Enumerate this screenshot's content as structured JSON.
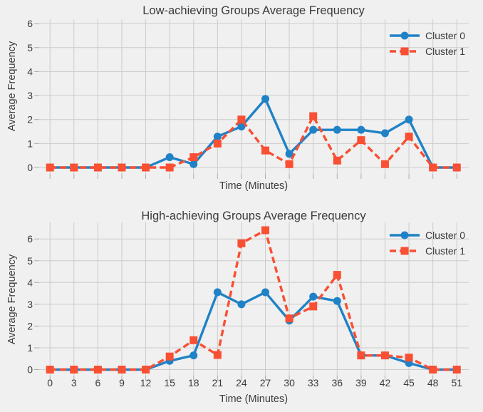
{
  "colors": {
    "figure_background": "#f0f0f0",
    "grid": "#cbcbcb",
    "text": "#3b3b3b",
    "cluster0_blue": "#1f82c6",
    "cluster1_red": "#f94f33"
  },
  "chart_data": [
    {
      "type": "line",
      "title": "Low-achieving Groups Average Frequency",
      "xlabel": "Time (Minutes)",
      "ylabel": "Average Frequency",
      "legend_position": "upper right",
      "grid": true,
      "show_x_tick_labels": false,
      "x": [
        0,
        3,
        6,
        9,
        12,
        15,
        18,
        21,
        24,
        27,
        30,
        33,
        36,
        39,
        42,
        45,
        48,
        51
      ],
      "x_tick_labels": [
        "0",
        "3",
        "6",
        "9",
        "12",
        "15",
        "18",
        "21",
        "24",
        "27",
        "30",
        "33",
        "36",
        "39",
        "42",
        "45",
        "48",
        "51"
      ],
      "y_ticks": [
        0,
        1,
        2,
        3,
        4,
        5,
        6
      ],
      "ylim": [
        0,
        6
      ],
      "series": [
        {
          "name": "Cluster 0",
          "color": "#1f82c6",
          "marker": "circle",
          "line_style": "solid",
          "values": [
            0,
            0,
            0,
            0,
            0,
            0.43,
            0.14,
            1.29,
            1.71,
            2.86,
            0.57,
            1.57,
            1.57,
            1.57,
            1.43,
            2.0,
            0,
            0
          ]
        },
        {
          "name": "Cluster 1",
          "color": "#f94f33",
          "marker": "square",
          "line_style": "dashed",
          "values": [
            0,
            0,
            0,
            0,
            0,
            0,
            0.43,
            1.0,
            2.0,
            0.71,
            0.14,
            2.14,
            0.29,
            1.14,
            0.14,
            1.29,
            0,
            0
          ]
        }
      ]
    },
    {
      "type": "line",
      "title": "High-achieving Groups Average Frequency",
      "xlabel": "Time (Minutes)",
      "ylabel": "Average Frequency",
      "legend_position": "upper right",
      "grid": true,
      "show_x_tick_labels": true,
      "x": [
        0,
        3,
        6,
        9,
        12,
        15,
        18,
        21,
        24,
        27,
        30,
        33,
        36,
        39,
        42,
        45,
        48,
        51
      ],
      "x_tick_labels": [
        "0",
        "3",
        "6",
        "9",
        "12",
        "15",
        "18",
        "21",
        "24",
        "27",
        "30",
        "33",
        "36",
        "39",
        "42",
        "45",
        "48",
        "51"
      ],
      "y_ticks": [
        0,
        1,
        2,
        3,
        4,
        5,
        6
      ],
      "ylim": [
        0,
        6.6
      ],
      "series": [
        {
          "name": "Cluster 0",
          "color": "#1f82c6",
          "marker": "circle",
          "line_style": "solid",
          "values": [
            0,
            0,
            0,
            0,
            0,
            0.4,
            0.65,
            3.55,
            3.0,
            3.55,
            2.25,
            3.35,
            3.15,
            0.65,
            0.65,
            0.3,
            0,
            0
          ]
        },
        {
          "name": "Cluster 1",
          "color": "#f94f33",
          "marker": "square",
          "line_style": "dashed",
          "values": [
            0,
            0,
            0,
            0,
            0,
            0.6,
            1.35,
            0.67,
            5.8,
            6.4,
            2.35,
            2.9,
            4.35,
            0.65,
            0.65,
            0.55,
            0,
            0
          ]
        }
      ]
    }
  ]
}
